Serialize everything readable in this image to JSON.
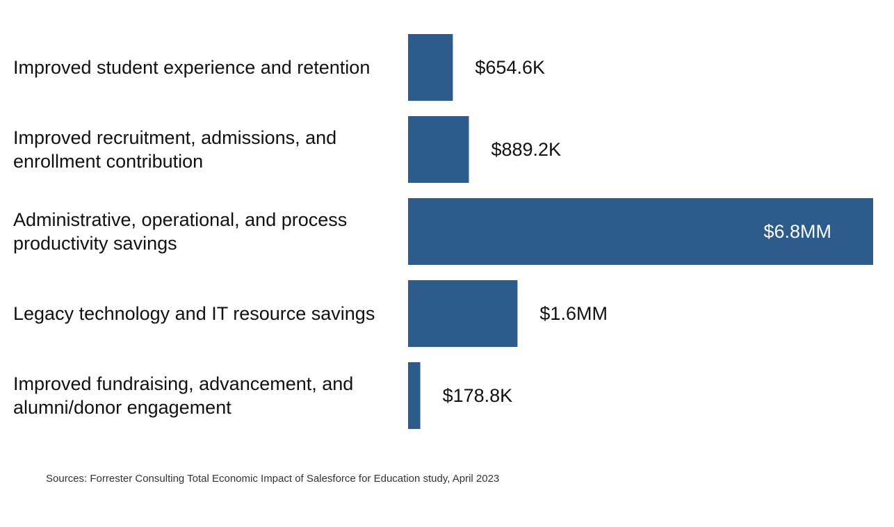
{
  "chart_data": {
    "type": "bar",
    "orientation": "horizontal",
    "bar_color": "#2d5b8b",
    "inside_label_color": "#ffffff",
    "outside_label_color": "#111111",
    "categories": [
      [
        "Improved student experience and retention"
      ],
      [
        "Improved recruitment, admissions, and",
        "enrollment contribution"
      ],
      [
        "Administrative, operational, and process",
        "productivity savings"
      ],
      [
        "Legacy technology and IT resource savings"
      ],
      [
        "Improved fundraising, advancement, and",
        "alumni/donor engagement"
      ]
    ],
    "values": [
      654.6,
      889.2,
      6800,
      1600,
      178.8
    ],
    "value_unit": "thousands of USD",
    "data_labels": [
      "$654.6K",
      "$889.2K",
      "$6.8MM",
      "$1.6MM",
      "$178.8K"
    ],
    "title": "",
    "xlabel": "",
    "ylabel": "",
    "grid": false,
    "legend": "none"
  },
  "footer": {
    "source": "Sources: Forrester Consulting Total Economic Impact of Salesforce for Education study, April 2023"
  }
}
